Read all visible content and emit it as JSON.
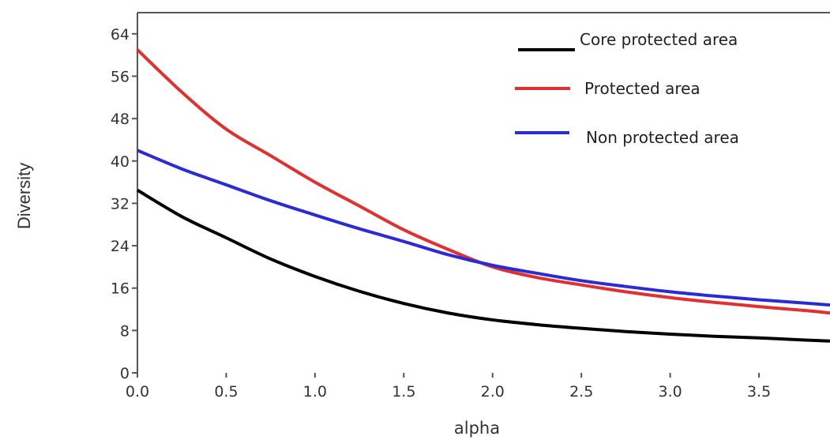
{
  "chart_data": {
    "type": "line",
    "title": "",
    "xlabel": "alpha",
    "ylabel": "Diversity",
    "xlim": [
      0,
      3.9
    ],
    "ylim": [
      0,
      68
    ],
    "x_ticks": [
      "0.0",
      "0.5",
      "1.0",
      "1.5",
      "2.0",
      "2.5",
      "3.0",
      "3.5"
    ],
    "y_ticks": [
      "0",
      "8",
      "16",
      "24",
      "32",
      "40",
      "48",
      "56",
      "64"
    ],
    "grid": false,
    "legend_position": "top-right",
    "x": [
      0.0,
      0.25,
      0.5,
      0.75,
      1.0,
      1.25,
      1.5,
      1.75,
      2.0,
      2.25,
      2.5,
      2.75,
      3.0,
      3.25,
      3.5,
      3.75,
      3.9
    ],
    "series": [
      {
        "name": "Core protected area",
        "color": "#000000",
        "values": [
          34.5,
          29.5,
          25.5,
          21.5,
          18.2,
          15.4,
          13.1,
          11.3,
          10.0,
          9.1,
          8.4,
          7.8,
          7.3,
          6.9,
          6.6,
          6.2,
          6.0
        ]
      },
      {
        "name": "Protected area",
        "color": "#e03030",
        "values": [
          61.0,
          53.0,
          46.0,
          41.0,
          36.0,
          31.5,
          27.0,
          23.3,
          20.0,
          18.0,
          16.6,
          15.3,
          14.2,
          13.3,
          12.5,
          11.8,
          11.3
        ]
      },
      {
        "name": "Non protected area",
        "color": "#2b2bd6",
        "values": [
          42.0,
          38.5,
          35.5,
          32.5,
          29.8,
          27.2,
          24.8,
          22.3,
          20.3,
          18.8,
          17.4,
          16.3,
          15.3,
          14.5,
          13.8,
          13.2,
          12.8
        ]
      }
    ]
  }
}
